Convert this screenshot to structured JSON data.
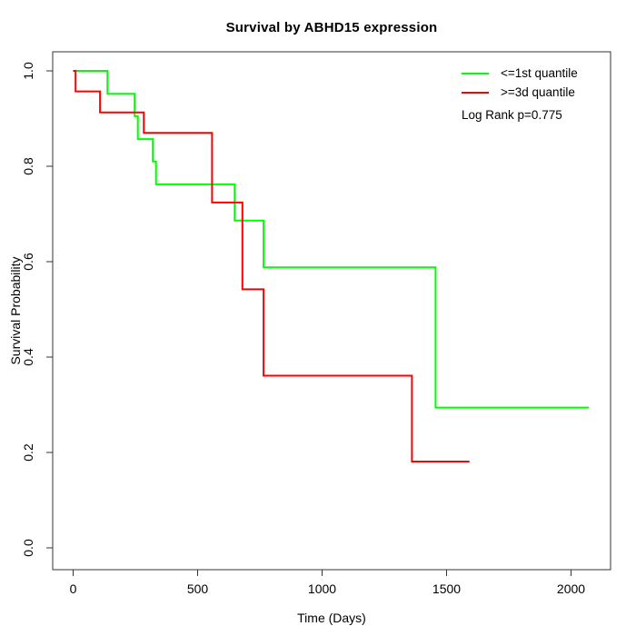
{
  "chart_data": {
    "type": "line",
    "subtype": "kaplan-meier-step",
    "title": "Survival by ABHD15 expression",
    "xlabel": "Time (Days)",
    "ylabel": "Survival Probability",
    "xlim": [
      0,
      2072
    ],
    "ylim": [
      0.0,
      1.0
    ],
    "grid": false,
    "x_ticks": [
      0,
      500,
      1000,
      1500,
      2000
    ],
    "y_ticks": [
      0.0,
      0.2,
      0.4,
      0.6,
      0.8,
      1.0
    ],
    "y_tick_labels": [
      "0.0",
      "0.2",
      "0.4",
      "0.6",
      "0.8",
      "1.0"
    ],
    "legend_position": "top-right-inside",
    "annotation": "Log Rank p=0.775",
    "axis_color": "#333333",
    "series": [
      {
        "name": "<=1st quantile",
        "color": "#00ff00",
        "start": [
          0,
          1.0
        ],
        "steps": [
          [
            138,
            0.952
          ],
          [
            247,
            0.905
          ],
          [
            260,
            0.857
          ],
          [
            320,
            0.81
          ],
          [
            333,
            0.762
          ],
          [
            649,
            0.686
          ],
          [
            765,
            0.588
          ],
          [
            1456,
            0.294
          ]
        ],
        "end_day": 2072
      },
      {
        "name": ">=3d quantile",
        "color": "#ff0000",
        "start": [
          0,
          1.0
        ],
        "steps": [
          [
            10,
            0.957
          ],
          [
            108,
            0.913
          ],
          [
            284,
            0.87
          ],
          [
            558,
            0.724
          ],
          [
            680,
            0.542
          ],
          [
            765,
            0.361
          ],
          [
            1361,
            0.181
          ]
        ],
        "end_day": 1592
      }
    ]
  }
}
